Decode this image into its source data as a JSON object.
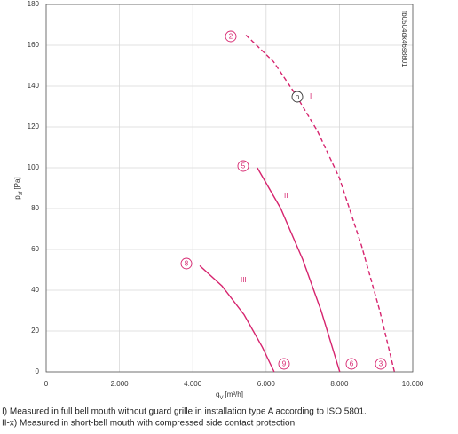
{
  "chart_data": {
    "type": "line",
    "xlabel": {
      "symbol": "q",
      "subscript": "V",
      "unit": "[m³/h]"
    },
    "ylabel": {
      "symbol": "p",
      "subscript": "sf",
      "unit": "[Pa]"
    },
    "code": "fb0504dk46s8801",
    "xlim": [
      0,
      10000
    ],
    "ylim": [
      0,
      180
    ],
    "xticks": [
      0,
      {
        "value": 2000,
        "label": "2.000"
      },
      {
        "value": 4000,
        "label": "4.000"
      },
      {
        "value": 6000,
        "label": "6.000"
      },
      {
        "value": 8000,
        "label": "8.000"
      },
      {
        "value": 10000,
        "label": "10.000"
      }
    ],
    "yticks": [
      0,
      20,
      40,
      60,
      80,
      100,
      120,
      140,
      160,
      180
    ],
    "grid": true,
    "series": [
      {
        "name": "I",
        "color": "#d6246e",
        "dashed": true,
        "x": [
          5450,
          6200,
          6800,
          7400,
          8000,
          8600,
          9100,
          9500
        ],
        "values": [
          165,
          152,
          136,
          118,
          95,
          62,
          30,
          0
        ]
      },
      {
        "name": "II",
        "color": "#d6246e",
        "dashed": false,
        "x": [
          5760,
          6400,
          7000,
          7500,
          8010
        ],
        "values": [
          100,
          80,
          55,
          30,
          0
        ]
      },
      {
        "name": "III",
        "color": "#d6246e",
        "dashed": false,
        "x": [
          4190,
          4800,
          5400,
          5900,
          6220
        ],
        "values": [
          52,
          42,
          28,
          12,
          0
        ]
      }
    ],
    "annotations": [
      "2",
      "n",
      "5",
      "8",
      "9",
      "6",
      "3"
    ],
    "notes": [
      "I) Measured in full bell mouth without guard grille in installation type A according to ISO 5801.",
      "II-x) Measured in short-bell mouth with compressed side contact protection."
    ]
  }
}
